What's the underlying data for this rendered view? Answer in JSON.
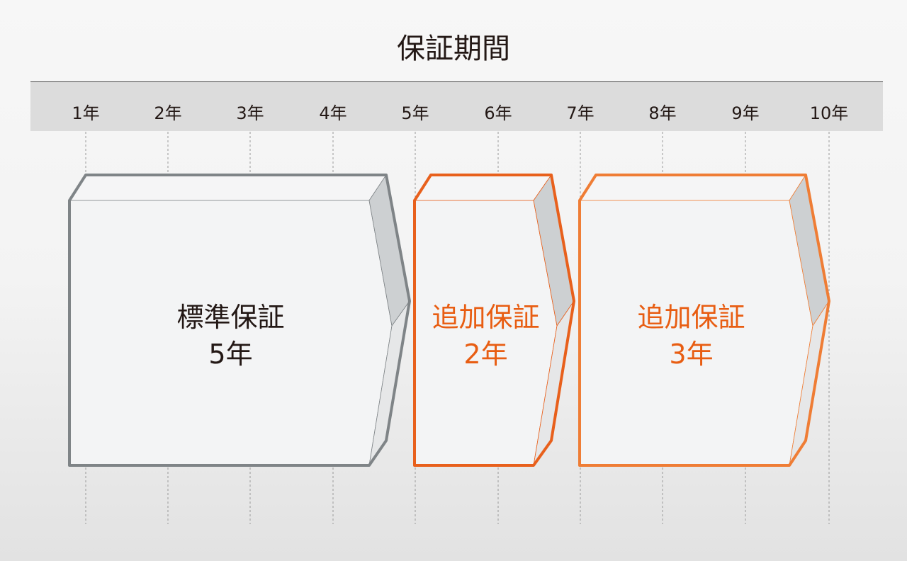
{
  "title": "保証期間",
  "years": [
    "1年",
    "2年",
    "3年",
    "4年",
    "5年",
    "6年",
    "7年",
    "8年",
    "9年",
    "10年"
  ],
  "blocks": [
    {
      "label": "標準保証",
      "duration": "5年",
      "color": "#7f8487",
      "text_color": "#231815"
    },
    {
      "label": "追加保証",
      "duration": "2年",
      "color": "#e8601c",
      "text_color": "#e85d12"
    },
    {
      "label": "追加保証",
      "duration": "3年",
      "color": "#ef7d35",
      "text_color": "#e85d12"
    }
  ]
}
